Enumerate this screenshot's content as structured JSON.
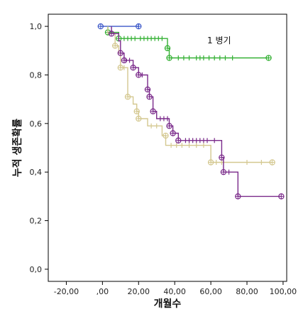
{
  "chart_data": {
    "type": "line",
    "subtype": "kaplan-meier-survival",
    "title": "",
    "xlabel": "개월수",
    "ylabel": "누적 생존확률",
    "legend_text": "1 병기",
    "legend_position": "top-right",
    "xlim": [
      -30,
      102
    ],
    "ylim": [
      -0.05,
      1.05
    ],
    "x_ticks": [
      -20,
      0,
      20,
      40,
      60,
      80,
      100
    ],
    "x_tick_labels": [
      "-20,00",
      ",00",
      "20,00",
      "40,00",
      "60,00",
      "80,00",
      "100,00"
    ],
    "y_ticks": [
      0,
      0.2,
      0.4,
      0.6,
      0.8,
      1.0
    ],
    "y_tick_labels": [
      "0,0",
      "0,2",
      "0,4",
      "0,6",
      "0,8",
      "1,0"
    ],
    "grid": false,
    "series": [
      {
        "color": "#3a56c8",
        "steps": [
          [
            -1,
            1.0
          ],
          [
            20,
            1.0
          ]
        ],
        "censored_x": [
          20
        ],
        "event_markers": [
          [
            -1,
            1.0
          ],
          [
            20,
            1.0
          ]
        ]
      },
      {
        "color": "#33b033",
        "steps": [
          [
            3,
            1.0
          ],
          [
            3,
            0.975
          ],
          [
            9,
            0.975
          ],
          [
            9,
            0.95
          ],
          [
            36,
            0.95
          ],
          [
            36,
            0.91
          ],
          [
            37,
            0.91
          ],
          [
            37,
            0.87
          ],
          [
            92,
            0.87
          ]
        ],
        "censored_x": [
          12,
          14,
          16,
          18,
          21,
          23,
          25,
          27,
          29,
          31,
          33,
          42,
          45,
          48,
          52,
          54,
          56,
          59,
          62,
          65,
          68,
          72
        ],
        "event_markers": [
          [
            3,
            0.975
          ],
          [
            9,
            0.95
          ],
          [
            36,
            0.91
          ],
          [
            37,
            0.87
          ],
          [
            92,
            0.87
          ]
        ]
      },
      {
        "color": "#d4c890",
        "steps": [
          [
            3,
            1.0
          ],
          [
            3,
            0.97
          ],
          [
            7,
            0.97
          ],
          [
            7,
            0.92
          ],
          [
            9,
            0.92
          ],
          [
            9,
            0.89
          ],
          [
            10,
            0.89
          ],
          [
            10,
            0.83
          ],
          [
            14,
            0.83
          ],
          [
            14,
            0.71
          ],
          [
            17,
            0.71
          ],
          [
            17,
            0.68
          ],
          [
            19,
            0.68
          ],
          [
            19,
            0.65
          ],
          [
            20,
            0.65
          ],
          [
            20,
            0.62
          ],
          [
            25,
            0.62
          ],
          [
            25,
            0.59
          ],
          [
            33,
            0.59
          ],
          [
            33,
            0.55
          ],
          [
            35,
            0.55
          ],
          [
            35,
            0.51
          ],
          [
            60,
            0.51
          ],
          [
            60,
            0.44
          ],
          [
            94,
            0.44
          ]
        ],
        "censored_x": [
          12,
          27,
          30,
          38,
          41,
          44,
          48,
          52,
          56,
          63,
          66,
          80,
          88
        ],
        "event_markers": [
          [
            7,
            0.92
          ],
          [
            10,
            0.83
          ],
          [
            14,
            0.71
          ],
          [
            19,
            0.65
          ],
          [
            20,
            0.62
          ],
          [
            35,
            0.55
          ],
          [
            60,
            0.44
          ],
          [
            94,
            0.44
          ]
        ]
      },
      {
        "color": "#7a2a8a",
        "steps": [
          [
            5,
            1.0
          ],
          [
            5,
            0.97
          ],
          [
            9,
            0.97
          ],
          [
            9,
            0.94
          ],
          [
            10,
            0.94
          ],
          [
            10,
            0.89
          ],
          [
            12,
            0.89
          ],
          [
            12,
            0.86
          ],
          [
            17,
            0.86
          ],
          [
            17,
            0.83
          ],
          [
            20,
            0.83
          ],
          [
            20,
            0.8
          ],
          [
            25,
            0.8
          ],
          [
            25,
            0.74
          ],
          [
            26,
            0.74
          ],
          [
            26,
            0.71
          ],
          [
            28,
            0.71
          ],
          [
            28,
            0.65
          ],
          [
            30,
            0.65
          ],
          [
            30,
            0.62
          ],
          [
            37,
            0.62
          ],
          [
            37,
            0.59
          ],
          [
            39,
            0.59
          ],
          [
            39,
            0.56
          ],
          [
            42,
            0.56
          ],
          [
            42,
            0.53
          ],
          [
            66,
            0.53
          ],
          [
            66,
            0.46
          ],
          [
            67,
            0.46
          ],
          [
            67,
            0.4
          ],
          [
            75,
            0.4
          ],
          [
            75,
            0.3
          ],
          [
            99,
            0.3
          ]
        ],
        "censored_x": [
          13,
          15,
          22,
          32,
          34,
          36,
          46,
          48,
          50,
          52,
          54,
          56,
          58,
          62,
          70
        ],
        "event_markers": [
          [
            5,
            0.97
          ],
          [
            10,
            0.89
          ],
          [
            12,
            0.86
          ],
          [
            17,
            0.83
          ],
          [
            20,
            0.8
          ],
          [
            25,
            0.74
          ],
          [
            26,
            0.71
          ],
          [
            28,
            0.65
          ],
          [
            37,
            0.59
          ],
          [
            39,
            0.56
          ],
          [
            42,
            0.53
          ],
          [
            66,
            0.46
          ],
          [
            67,
            0.4
          ],
          [
            75,
            0.3
          ],
          [
            99,
            0.3
          ]
        ]
      }
    ]
  }
}
